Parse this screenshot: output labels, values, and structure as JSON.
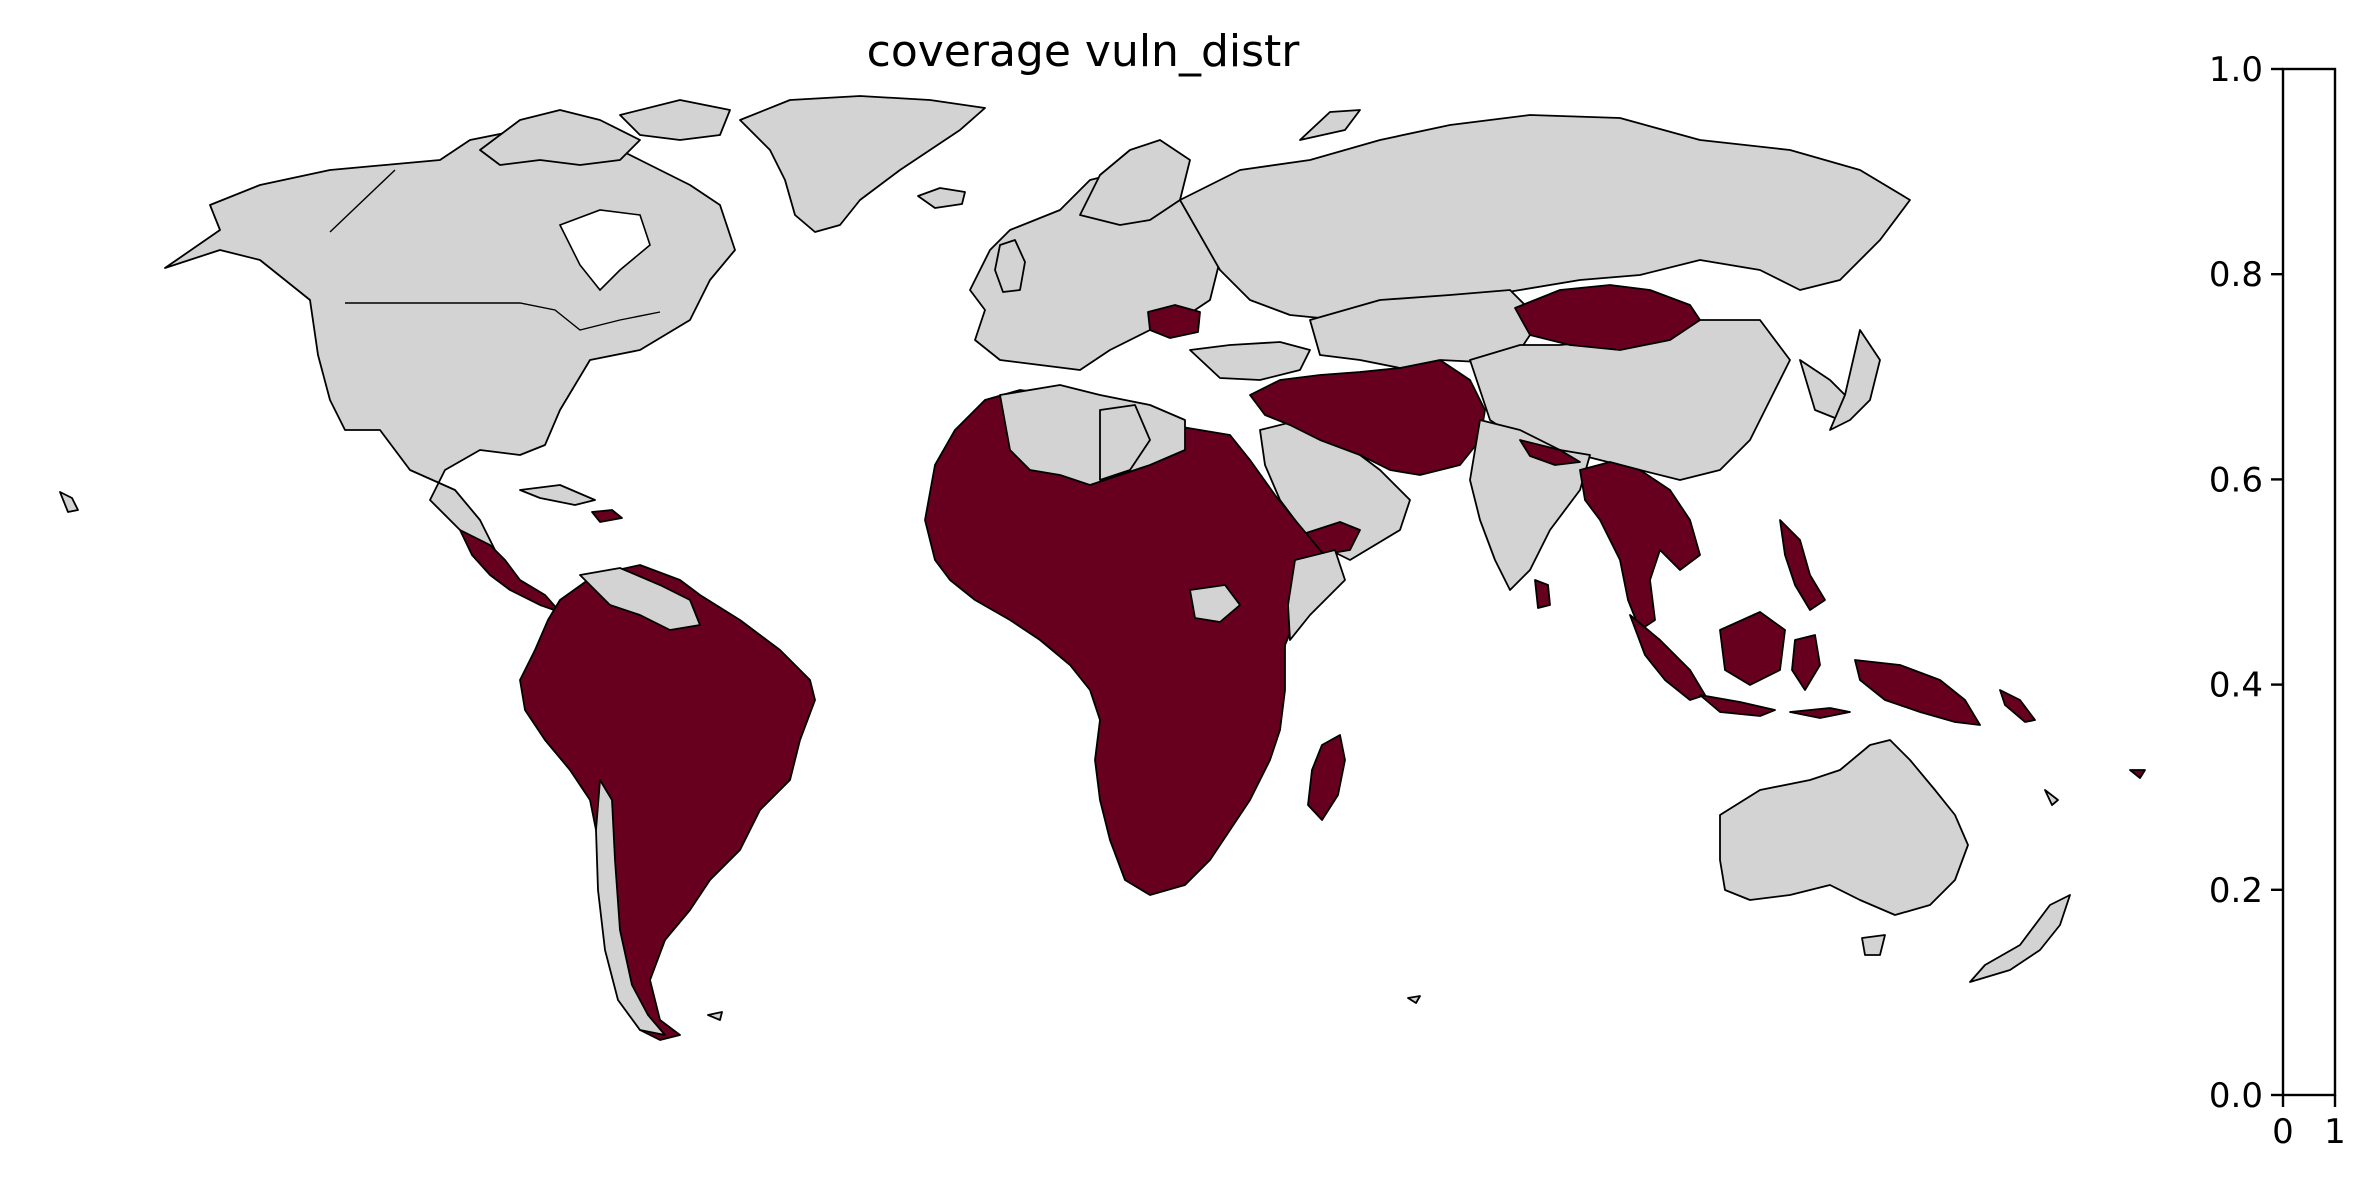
{
  "chart": {
    "title": "coverage vuln_distr"
  },
  "map": {
    "colors": {
      "land": "#d3d3d3",
      "covered": "#67001f",
      "background": "#ffffff",
      "border": "#000000"
    },
    "covered_regions": [
      "Mexico/Central America",
      "South America",
      "Africa",
      "Romania",
      "Middle East/Iran/Afghanistan/Pakistan",
      "Mongolia",
      "Southeast Asia",
      "Indonesia/Papua New Guinea/Philippines",
      "Sri Lanka",
      "Madagascar"
    ]
  },
  "colorbar": {
    "y_ticks": [
      "0.0",
      "0.2",
      "0.4",
      "0.6",
      "0.8",
      "1.0"
    ],
    "x_ticks": [
      "0",
      "1"
    ],
    "ylim": [
      0,
      1
    ],
    "xlim": [
      0,
      1
    ]
  }
}
